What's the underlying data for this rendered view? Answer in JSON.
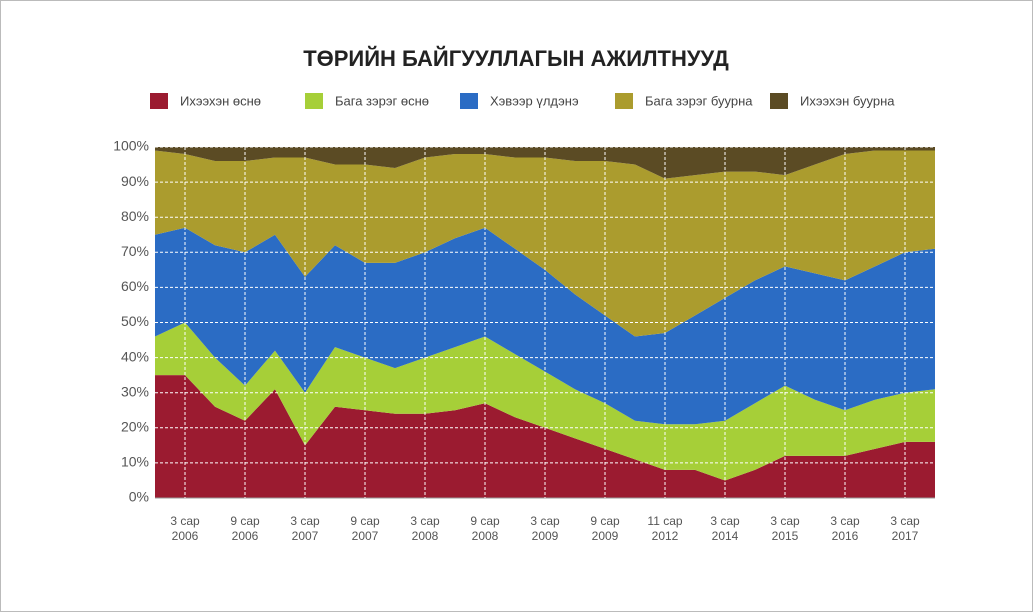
{
  "chart_data": {
    "type": "stacked_area",
    "title": "ТӨРИЙН БАЙГУУЛЛАГЫН АЖИЛТНУУД",
    "categories": [
      null,
      "3 сар 2006",
      null,
      "9 сар 2006",
      null,
      "3 сар 2007",
      null,
      "9 сар 2007",
      null,
      "3 сар 2008",
      null,
      "9 сар 2008",
      null,
      "3 сар 2009",
      null,
      "9 сар 2009",
      null,
      "11 сар 2012",
      null,
      "3 сар 2014",
      null,
      "3 сар 2015",
      null,
      "3 сар 2016",
      null,
      "3 сар 2017",
      null
    ],
    "series": [
      {
        "name": "Ихээхэн өснө",
        "color": "#9b1b30",
        "values": [
          35,
          35,
          26,
          22,
          31,
          15,
          26,
          25,
          24,
          24,
          25,
          27,
          23,
          20,
          17,
          14,
          11,
          8,
          8,
          5,
          8,
          12,
          12,
          12,
          14,
          16,
          16
        ]
      },
      {
        "name": "Бага зэрэг өснө",
        "color": "#a6cf38",
        "values": [
          11,
          15,
          14,
          10,
          11,
          15,
          17,
          15,
          13,
          16,
          18,
          19,
          18,
          16,
          14,
          13,
          11,
          13,
          13,
          17,
          19,
          20,
          16,
          13,
          14,
          14,
          15
        ]
      },
      {
        "name": "Хэвээр үлдэнэ",
        "color": "#2b6cc4",
        "values": [
          29,
          27,
          32,
          38,
          33,
          33,
          29,
          27,
          30,
          30,
          31,
          31,
          30,
          29,
          27,
          25,
          24,
          26,
          31,
          35,
          35,
          34,
          36,
          37,
          38,
          40,
          40
        ]
      },
      {
        "name": "Бага зэрэг буурна",
        "color": "#ab9c2e",
        "values": [
          24,
          21,
          24,
          26,
          22,
          34,
          23,
          28,
          27,
          27,
          24,
          21,
          26,
          32,
          38,
          44,
          49,
          44,
          40,
          36,
          31,
          26,
          31,
          36,
          33,
          29,
          28
        ]
      },
      {
        "name": "Ихээхэн буурна",
        "color": "#5b4b24",
        "values": [
          1,
          2,
          4,
          4,
          3,
          3,
          5,
          5,
          6,
          3,
          2,
          2,
          3,
          3,
          4,
          4,
          5,
          9,
          8,
          7,
          7,
          8,
          5,
          2,
          1,
          1,
          1
        ]
      }
    ],
    "ylim": [
      0,
      100
    ],
    "yticks": [
      {
        "value": 0,
        "label": "0%"
      },
      {
        "value": 10,
        "label": "10%"
      },
      {
        "value": 20,
        "label": "20%"
      },
      {
        "value": 30,
        "label": "30%"
      },
      {
        "value": 40,
        "label": "40%"
      },
      {
        "value": 50,
        "label": "50%"
      },
      {
        "value": 60,
        "label": "60%"
      },
      {
        "value": 70,
        "label": "70%"
      },
      {
        "value": 80,
        "label": "80%"
      },
      {
        "value": 90,
        "label": "90%"
      },
      {
        "value": 100,
        "label": "100%"
      }
    ],
    "grid": true,
    "legend": "top"
  }
}
